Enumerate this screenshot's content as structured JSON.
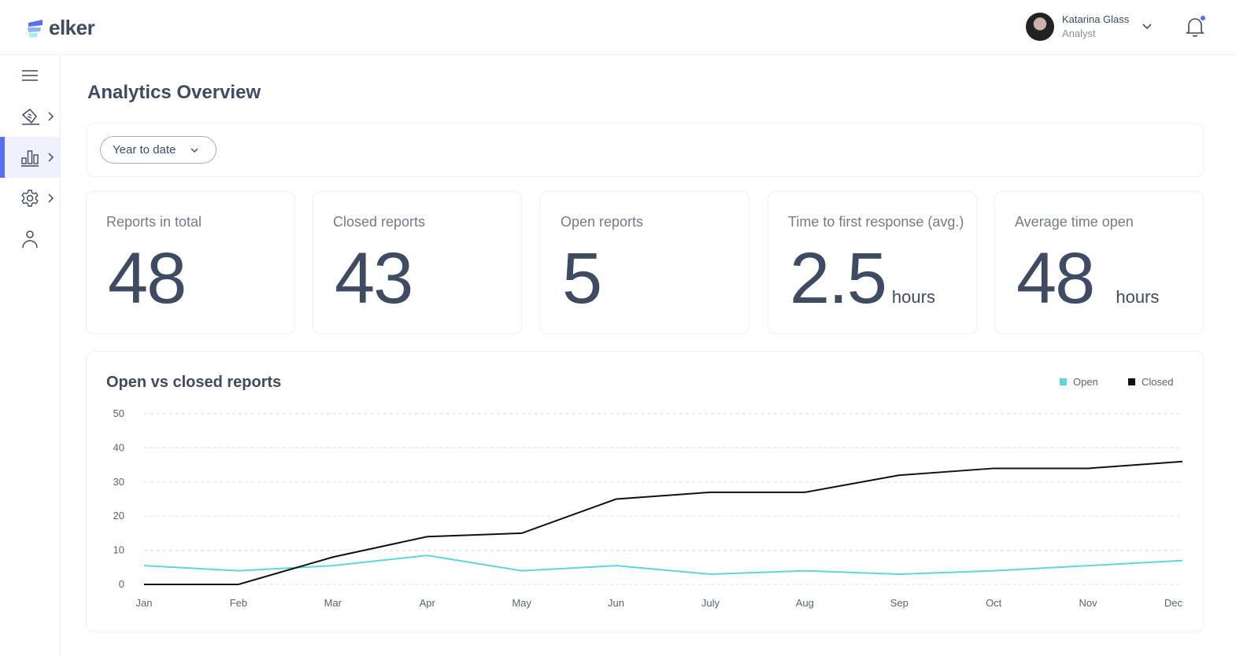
{
  "brand": {
    "name": "elker"
  },
  "user": {
    "name": "Katarina Glass",
    "role": "Analyst",
    "has_notification": true
  },
  "sidebar": {
    "items": [
      {
        "icon": "menu-icon"
      },
      {
        "icon": "reports-icon"
      },
      {
        "icon": "analytics-icon",
        "active": true
      },
      {
        "icon": "settings-icon"
      },
      {
        "icon": "user-icon"
      }
    ]
  },
  "page": {
    "title": "Analytics Overview"
  },
  "filter": {
    "selected": "Year to date"
  },
  "stats": [
    {
      "label": "Reports in total",
      "value": "48",
      "unit": ""
    },
    {
      "label": "Closed reports",
      "value": "43",
      "unit": ""
    },
    {
      "label": "Open reports",
      "value": "5",
      "unit": ""
    },
    {
      "label": "Time to first response (avg.)",
      "value": "2.5",
      "unit": "hours"
    },
    {
      "label": "Average time open",
      "value": "48",
      "unit": "hours"
    }
  ],
  "chart_data": {
    "type": "line",
    "title": "Open vs closed reports",
    "categories": [
      "Jan",
      "Feb",
      "Mar",
      "Apr",
      "May",
      "Jun",
      "July",
      "Aug",
      "Sep",
      "Oct",
      "Nov",
      "Dec"
    ],
    "series": [
      {
        "name": "Open",
        "color": "#5dd6dc",
        "values": [
          5.5,
          4,
          5.5,
          8.5,
          4,
          5.5,
          3,
          4,
          3,
          4,
          5.5,
          7
        ]
      },
      {
        "name": "Closed",
        "color": "#111111",
        "values": [
          0,
          0,
          8,
          14,
          15,
          25,
          27,
          27,
          32,
          34,
          34,
          36
        ]
      }
    ],
    "yticks": [
      0,
      10,
      20,
      30,
      40,
      50
    ],
    "ylim": [
      0,
      50
    ],
    "grid": true,
    "legend": "top-right"
  }
}
